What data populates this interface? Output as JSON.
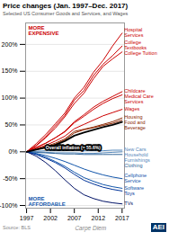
{
  "chart_data": {
    "type": "line",
    "title": "Price changes (Jan. 1997–Dec. 2017)",
    "subtitle": "Selected US Consumer Goods and Services, and Wages",
    "x": [
      1997,
      1999,
      2001,
      2003,
      2005,
      2007,
      2009,
      2011,
      2013,
      2015,
      2017
    ],
    "series": [
      {
        "name": "Hospital\nServices",
        "color": "#cc0000",
        "values": [
          0,
          15,
          32,
          52,
          72,
          100,
          120,
          148,
          170,
          197,
          221
        ]
      },
      {
        "name": "College\nTextbooks",
        "color": "#cc0000",
        "values": [
          0,
          12,
          28,
          48,
          68,
          96,
          114,
          142,
          163,
          179,
          197
        ]
      },
      {
        "name": "College Tuition",
        "color": "#cc0000",
        "values": [
          0,
          11,
          26,
          44,
          65,
          90,
          109,
          136,
          159,
          173,
          186
        ]
      },
      {
        "name": "Childcare",
        "color": "#cc0000",
        "values": [
          0,
          8,
          16,
          26,
          38,
          56,
          69,
          83,
          94,
          103,
          112
        ]
      },
      {
        "name": "Medical Care\nServices",
        "color": "#cc0000",
        "values": [
          0,
          8,
          16,
          26,
          37,
          54,
          66,
          79,
          90,
          99,
          106
        ]
      },
      {
        "name": "Wages",
        "color": "#cc0000",
        "values": [
          0,
          6,
          12,
          20,
          29,
          43,
          51,
          59,
          67,
          73,
          79
        ]
      },
      {
        "name": "Housing",
        "color": "#8b2500",
        "values": [
          0,
          5,
          10,
          16,
          24,
          38,
          42,
          46,
          51,
          56,
          63
        ]
      },
      {
        "name": "Food and\nBeverage",
        "color": "#8b2500",
        "values": [
          0,
          4,
          8,
          14,
          22,
          35,
          41,
          45,
          49,
          53,
          59
        ]
      },
      {
        "name": "Overall inflation (= 55.6%)",
        "color": "#000000",
        "line_style": "thick",
        "values": [
          0,
          4,
          8,
          13,
          20,
          30,
          36,
          41,
          46,
          50,
          55.6
        ]
      },
      {
        "name": "New Cars",
        "color": "#5588bb",
        "values": [
          0,
          1,
          2,
          2,
          2,
          3,
          2,
          2,
          2,
          3,
          3
        ]
      },
      {
        "name": "Household\nFurnishings",
        "color": "#5588bb",
        "values": [
          0,
          0,
          -1,
          -2,
          -2,
          -2,
          -3,
          -3,
          -2,
          -1,
          0
        ]
      },
      {
        "name": "Clothing",
        "color": "#336699",
        "values": [
          0,
          -1,
          -2,
          -3,
          -4,
          -4,
          -5,
          -5,
          -5,
          -5,
          -5
        ]
      },
      {
        "name": "Cellphone\nService",
        "color": "#1155aa",
        "values": [
          0,
          -3,
          -7,
          -12,
          -18,
          -25,
          -32,
          -38,
          -43,
          -47,
          -50
        ]
      },
      {
        "name": "Software",
        "color": "#1155aa",
        "values": [
          0,
          -4,
          -10,
          -18,
          -27,
          -38,
          -48,
          -55,
          -61,
          -65,
          -68
        ]
      },
      {
        "name": "Toys",
        "color": "#003399",
        "values": [
          0,
          -5,
          -12,
          -20,
          -30,
          -42,
          -53,
          -60,
          -66,
          -70,
          -73
        ]
      },
      {
        "name": "TVs",
        "color": "#001166",
        "values": [
          0,
          -8,
          -20,
          -35,
          -52,
          -68,
          -80,
          -87,
          -92,
          -95,
          -97
        ]
      }
    ],
    "xlim": [
      1996.8,
      2017.5
    ],
    "xticks": [
      1997,
      2002,
      2007,
      2012,
      2017
    ],
    "ylim": [
      -105,
      240
    ],
    "yticks": [
      {
        "value": -100,
        "label": "-100%"
      },
      {
        "value": -50,
        "label": "-50%"
      },
      {
        "value": 0,
        "label": "0%"
      },
      {
        "value": 50,
        "label": "50%"
      },
      {
        "value": 100,
        "label": "100%"
      },
      {
        "value": 150,
        "label": "150%"
      },
      {
        "value": 200,
        "label": "200%"
      }
    ],
    "grid": true,
    "annotations": [
      {
        "text": "MORE\nEXPENSIVE",
        "color": "#cc0000"
      },
      {
        "text": "MORE\nAFFORDABLE",
        "color": "#1155aa"
      },
      {
        "text": "Source: BLS"
      },
      {
        "text": "Carpe Diem"
      },
      {
        "text": "AEI",
        "color": "#003366"
      }
    ]
  }
}
